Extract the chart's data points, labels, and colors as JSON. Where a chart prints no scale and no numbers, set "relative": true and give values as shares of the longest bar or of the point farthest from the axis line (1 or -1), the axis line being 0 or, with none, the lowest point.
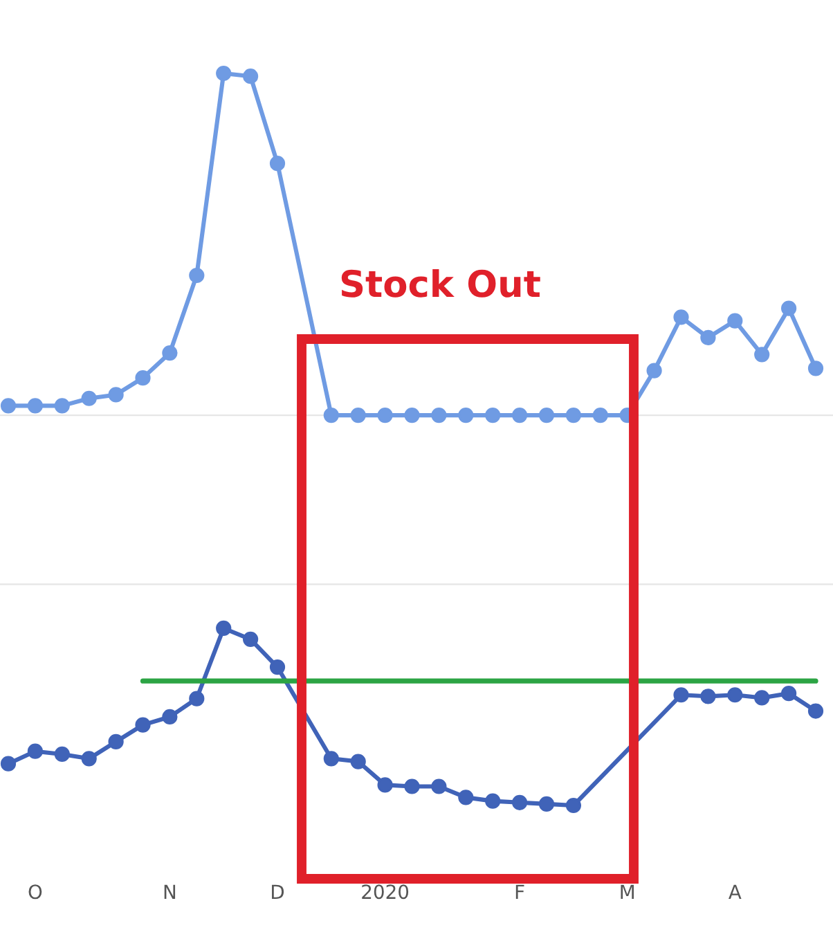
{
  "chart_data": {
    "type": "line",
    "relative": true,
    "categories": [
      null,
      "O",
      null,
      null,
      null,
      null,
      "N",
      null,
      null,
      null,
      "D",
      null,
      null,
      null,
      "2020",
      null,
      null,
      null,
      null,
      "F",
      null,
      null,
      null,
      "M",
      null,
      null,
      null,
      "A",
      null,
      null,
      null
    ],
    "series": [
      {
        "color": "#6f9be3",
        "values": [
          0.546,
          0.546,
          0.546,
          0.556,
          0.561,
          0.584,
          0.618,
          0.724,
          1,
          0.996,
          0.877,
          null,
          0.533,
          0.533,
          0.533,
          0.533,
          0.533,
          0.533,
          0.533,
          0.533,
          0.533,
          0.533,
          0.533,
          0.533,
          0.594,
          0.667,
          0.639,
          0.662,
          0.616,
          0.679,
          0.597
        ]
      },
      {
        "color": "#4063b8",
        "values": [
          0.057,
          0.074,
          0.07,
          0.064,
          0.087,
          0.11,
          0.121,
          0.146,
          0.242,
          0.227,
          0.189,
          null,
          0.064,
          0.06,
          0.028,
          0.026,
          0.026,
          0.011,
          0.006,
          0.004,
          0.002,
          0,
          null,
          null,
          null,
          0.151,
          0.149,
          0.151,
          0.147,
          0.153,
          0.129
        ]
      },
      {
        "color": "#2ca444",
        "values": [
          null,
          null,
          null,
          null,
          null,
          0.17,
          0.17,
          0.17,
          0.17,
          0.17,
          0.17,
          0.17,
          0.17,
          0.17,
          0.17,
          0.17,
          0.17,
          0.17,
          0.17,
          0.17,
          0.17,
          0.17,
          0.17,
          0.17,
          0.17,
          0.17,
          0.17,
          0.17,
          0.17,
          0.17,
          0.17
        ],
        "marker": "none"
      }
    ],
    "marker": "circle",
    "ref_lines": [
      {
        "axis": "y",
        "value": 0.533,
        "color": "#e6e6e6"
      },
      {
        "axis": "y",
        "value": 0.302,
        "color": "#e6e6e6"
      }
    ],
    "annotations": [
      "Stock Out"
    ],
    "legend": false
  }
}
